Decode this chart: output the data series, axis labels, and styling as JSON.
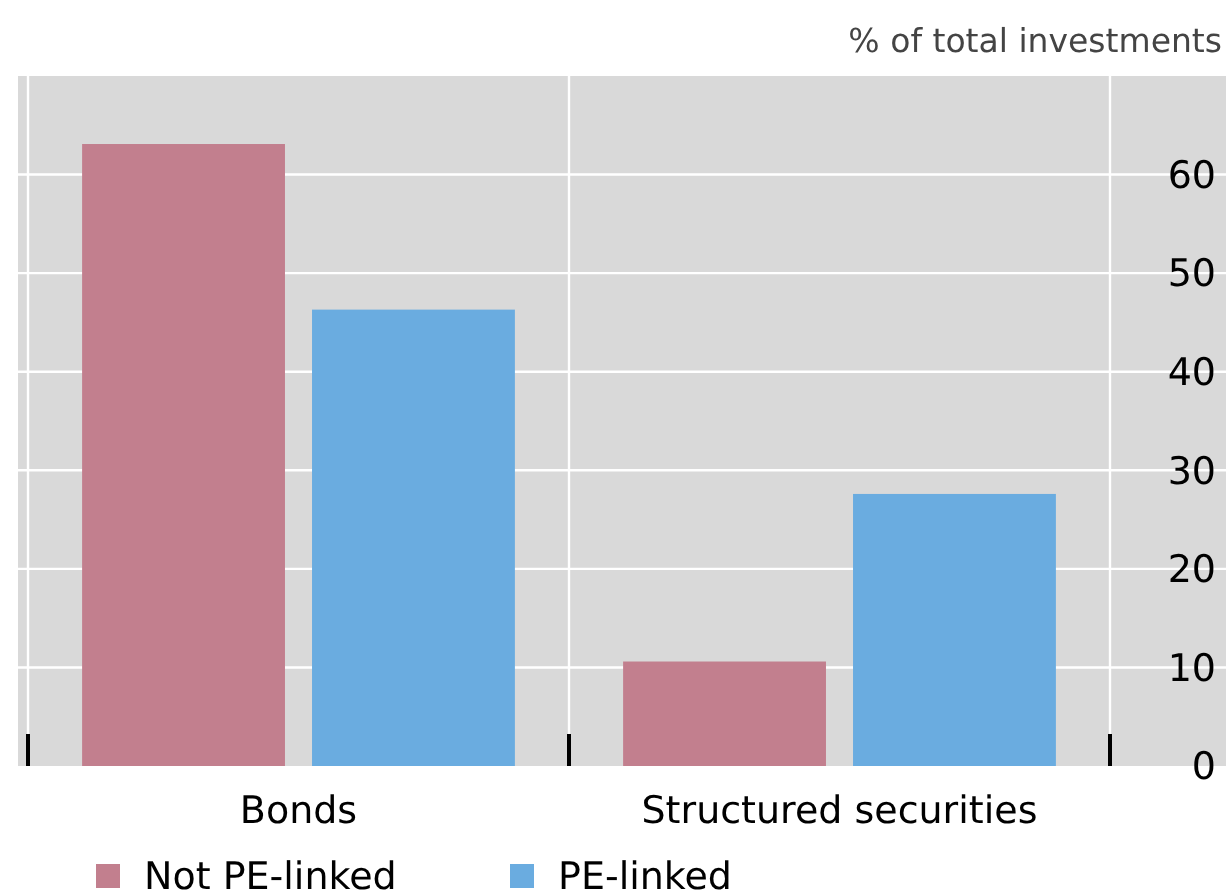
{
  "chart_data": {
    "type": "bar",
    "ylabel": "% of total investments",
    "categories": [
      "Bonds",
      "Structured securities"
    ],
    "series": [
      {
        "name": "Not PE-linked",
        "color": "#c27f8e",
        "values": [
          63.1,
          10.6
        ]
      },
      {
        "name": "PE-linked",
        "color": "#6aace0",
        "values": [
          46.3,
          27.6
        ]
      }
    ],
    "ylim": [
      0,
      70
    ],
    "yticks": [
      0,
      10,
      20,
      30,
      40,
      50,
      60
    ],
    "grid": "y",
    "legend": "bottom"
  }
}
